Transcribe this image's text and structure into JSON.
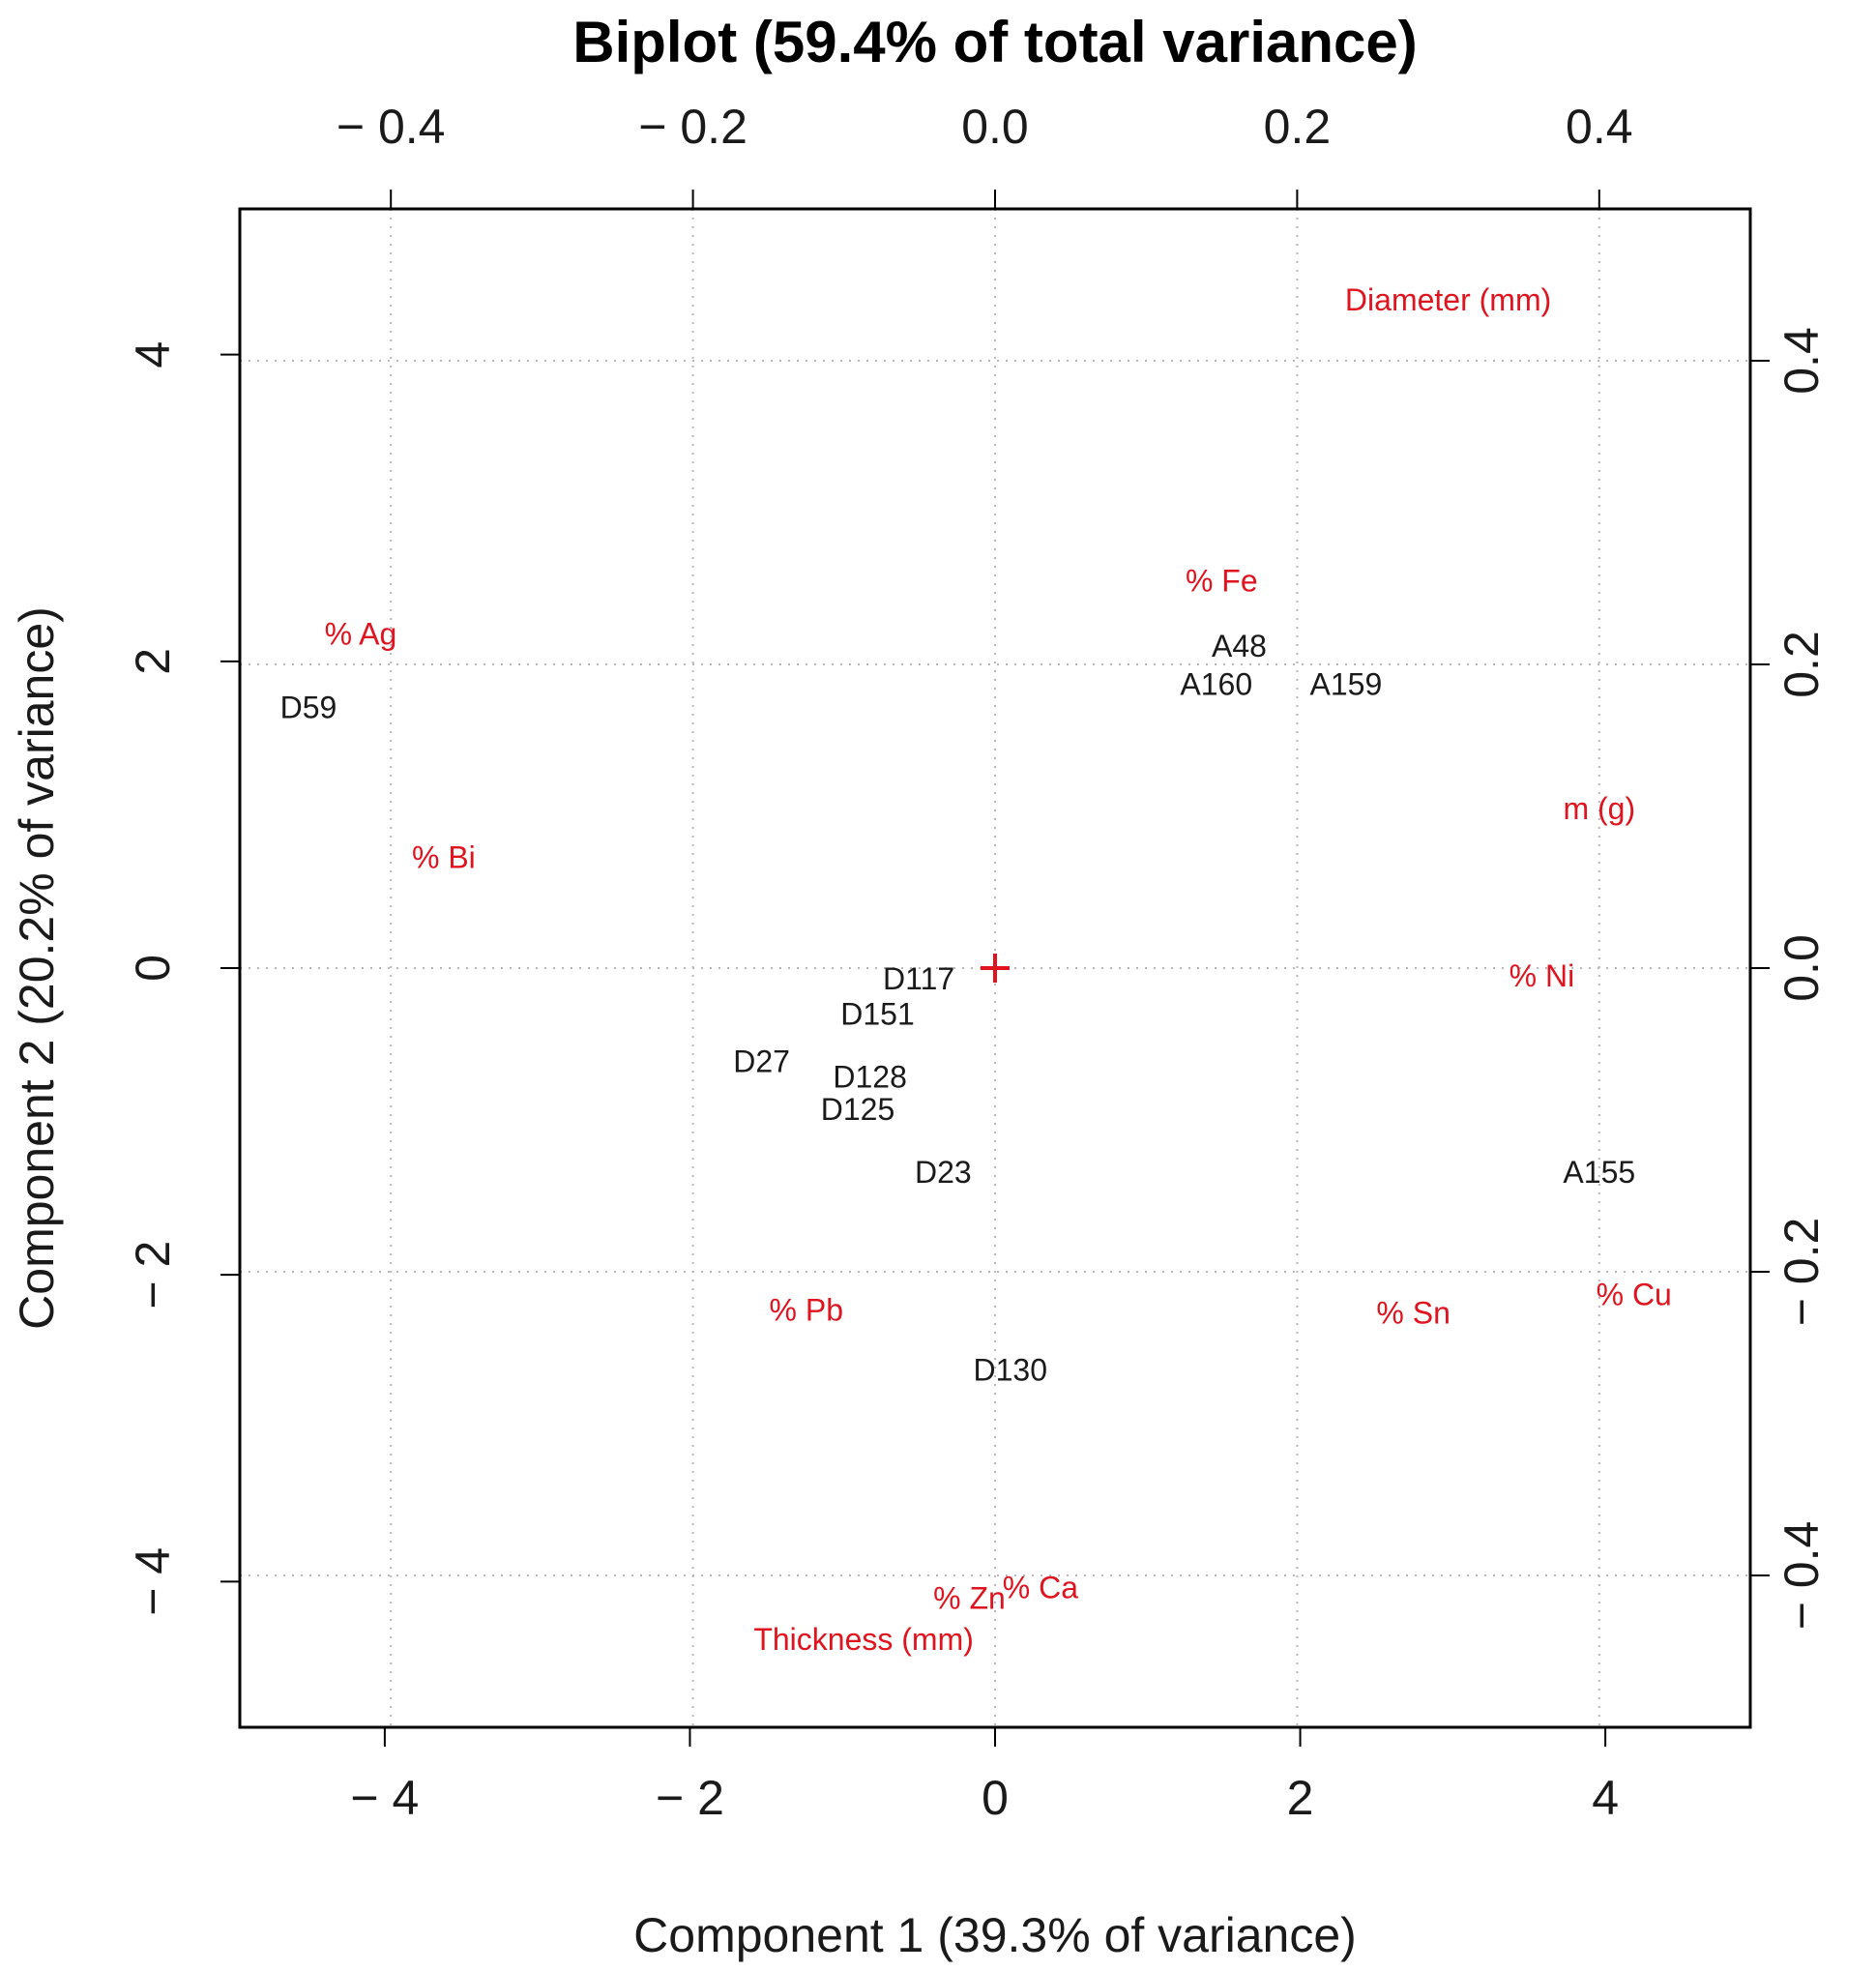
{
  "chart_data": {
    "type": "scatter",
    "title": "Biplot (59.4% of total variance)",
    "xlabel": "Component 1 (39.3% of variance)",
    "ylabel": "Component 2 (20.2% of variance)",
    "xlim": [
      -4.95,
      4.95
    ],
    "ylim": [
      -4.95,
      4.95
    ],
    "secondary_lim": [
      -0.5,
      0.5
    ],
    "x_ticks": [
      -4,
      -2,
      0,
      2,
      4
    ],
    "x_tick_labels": [
      "− 4",
      "− 2",
      "0",
      "2",
      "4"
    ],
    "y_ticks": [
      -4,
      -2,
      0,
      2,
      4
    ],
    "y_tick_labels": [
      "− 4",
      "− 2",
      "0",
      "2",
      "4"
    ],
    "top_ticks": [
      -0.4,
      -0.2,
      0.0,
      0.2,
      0.4
    ],
    "top_tick_labels": [
      "− 0.4",
      "− 0.2",
      "0.0",
      "0.2",
      "0.4"
    ],
    "right_ticks": [
      -0.4,
      -0.2,
      0.0,
      0.2,
      0.4
    ],
    "right_tick_labels": [
      "− 0.4",
      "− 0.2",
      "0.0",
      "0.2",
      "0.4"
    ],
    "grid": true,
    "observations": [
      {
        "label": "D59",
        "x": -4.5,
        "y": 1.7
      },
      {
        "label": "A48",
        "x": 1.6,
        "y": 2.1
      },
      {
        "label": "A160",
        "x": 1.45,
        "y": 1.85
      },
      {
        "label": "A159",
        "x": 2.3,
        "y": 1.85
      },
      {
        "label": "D117",
        "x": -0.5,
        "y": -0.07
      },
      {
        "label": "D151",
        "x": -0.77,
        "y": -0.3
      },
      {
        "label": "D27",
        "x": -1.53,
        "y": -0.61
      },
      {
        "label": "D128",
        "x": -0.82,
        "y": -0.71
      },
      {
        "label": "D125",
        "x": -0.9,
        "y": -0.92
      },
      {
        "label": "D23",
        "x": -0.34,
        "y": -1.33
      },
      {
        "label": "A155",
        "x": 3.96,
        "y": -1.33
      },
      {
        "label": "D130",
        "x": 0.1,
        "y": -2.62
      }
    ],
    "variables": [
      {
        "label": "Diameter (mm)",
        "x": 0.3,
        "y": 0.44
      },
      {
        "label": "% Fe",
        "x": 0.15,
        "y": 0.255
      },
      {
        "label": "% Ag",
        "x": -0.42,
        "y": 0.22
      },
      {
        "label": "m (g)",
        "x": 0.4,
        "y": 0.105
      },
      {
        "label": "% Bi",
        "x": -0.365,
        "y": 0.073
      },
      {
        "label": "% Ni",
        "x": 0.362,
        "y": -0.005
      },
      {
        "label": "% Pb",
        "x": -0.125,
        "y": -0.225
      },
      {
        "label": "% Sn",
        "x": 0.277,
        "y": -0.227
      },
      {
        "label": "% Cu",
        "x": 0.423,
        "y": -0.215
      },
      {
        "label": "% Zn",
        "x": -0.017,
        "y": -0.415
      },
      {
        "label": "% Ca",
        "x": 0.03,
        "y": -0.408
      },
      {
        "label": "Thickness (mm)",
        "x": -0.087,
        "y": -0.442
      }
    ]
  }
}
